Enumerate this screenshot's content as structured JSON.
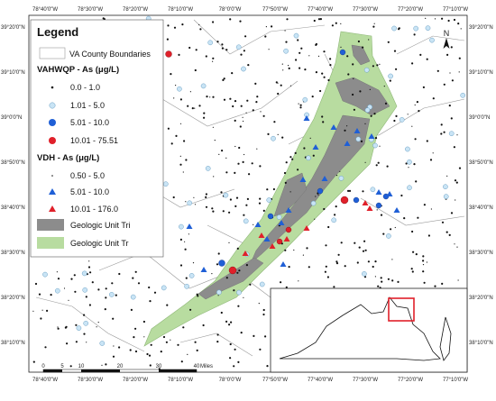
{
  "legend": {
    "title": "Legend",
    "county_label": "VA County Boundaries",
    "vahwqp_header": "VAHWQP - As (μg/L)",
    "vahwqp_classes": [
      "0.0 - 1.0",
      "1.01 - 5.0",
      "5.01 - 10.0",
      "10.01 - 75.51"
    ],
    "vdh_header": "VDH - As (μg/L)",
    "vdh_classes": [
      "0.50 - 5.0",
      "5.01 - 10.0",
      "10.01 - 176.0"
    ],
    "geo_tri_label": "Geologic Unit Tri",
    "geo_tr_label": "Geologic Unit Tr"
  },
  "colors": {
    "class_black": "#111111",
    "class_lightblue": "#c9e4f5",
    "class_blue": "#1f5fd6",
    "class_red": "#e0202a",
    "geo_tri": "#8c8c8c",
    "geo_tr": "#b8dca0",
    "inset_box": "#e0202a"
  },
  "north_label": "N",
  "scale": {
    "ticks": [
      "0",
      "5",
      "10",
      "20",
      "30",
      "40"
    ],
    "unit": "Miles"
  },
  "grid": {
    "top_lon": [
      "78°40'0\"W",
      "78°30'0\"W",
      "78°20'0\"W",
      "78°10'0\"W",
      "78°0'0\"W",
      "77°50'0\"W",
      "77°40'0\"W",
      "77°30'0\"W",
      "77°20'0\"W",
      "77°10'0\"W"
    ],
    "bottom_lon": [
      "78°40'0\"W",
      "78°30'0\"W",
      "78°20'0\"W",
      "78°10'0\"W",
      "78°0'0\"W",
      "77°50'0\"W",
      "77°40'0\"W",
      "77°30'0\"W",
      "77°20'0\"W",
      "77°10'0\"W"
    ],
    "left_lat": [
      "39°20'0\"N",
      "39°10'0\"N",
      "39°0'0\"N",
      "38°50'0\"N",
      "38°40'0\"N",
      "38°30'0\"N",
      "38°20'0\"N",
      "38°10'0\"N"
    ],
    "right_lat": [
      "39°20'0\"N",
      "39°10'0\"N",
      "39°0'0\"N",
      "38°50'0\"N",
      "38°40'0\"N",
      "38°30'0\"N",
      "38°20'0\"N",
      "38°10'0\"N"
    ]
  }
}
